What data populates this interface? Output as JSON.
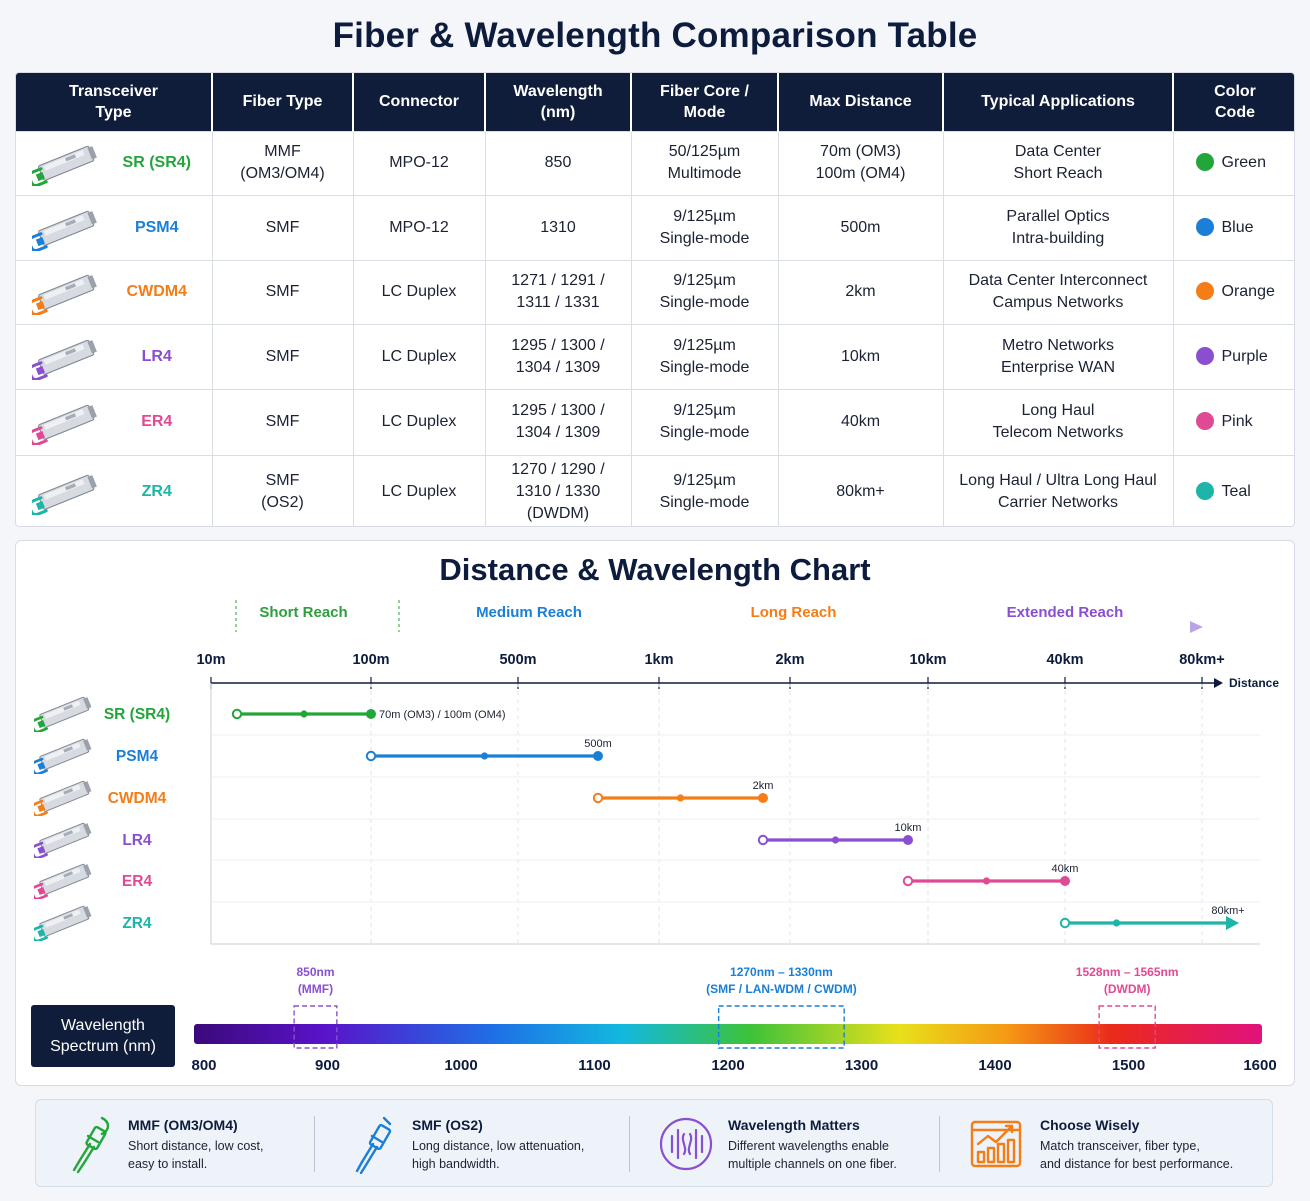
{
  "title": "Fiber & Wavelength Comparison Table",
  "table": {
    "headers": [
      "Transceiver Type",
      "Fiber Type",
      "Connector",
      "Wavelength (nm)",
      "Fiber Core / Mode",
      "Max Distance",
      "Typical Applications",
      "Color Code"
    ],
    "rows": [
      {
        "type": "SR (SR4)",
        "fiber": [
          "MMF",
          "(OM3/OM4)"
        ],
        "connector": "MPO-12",
        "wavelength": [
          "850"
        ],
        "core": [
          "50/125µm",
          "Multimode"
        ],
        "distance": [
          "70m (OM3)",
          "100m (OM4)"
        ],
        "apps": [
          "Data Center",
          "Short Reach"
        ],
        "color_name": "Green",
        "color": "#22a63a"
      },
      {
        "type": "PSM4",
        "fiber": [
          "SMF"
        ],
        "connector": "MPO-12",
        "wavelength": [
          "1310"
        ],
        "core": [
          "9/125µm",
          "Single-mode"
        ],
        "distance": [
          "500m"
        ],
        "apps": [
          "Parallel Optics",
          "Intra-building"
        ],
        "color_name": "Blue",
        "color": "#1a7fd6"
      },
      {
        "type": "CWDM4",
        "fiber": [
          "SMF"
        ],
        "connector": "LC Duplex",
        "wavelength": [
          "1271 / 1291 /",
          "1311 / 1331"
        ],
        "core": [
          "9/125µm",
          "Single-mode"
        ],
        "distance": [
          "2km"
        ],
        "apps": [
          "Data Center Interconnect",
          "Campus Networks"
        ],
        "color_name": "Orange",
        "color": "#f47d17"
      },
      {
        "type": "LR4",
        "fiber": [
          "SMF"
        ],
        "connector": "LC Duplex",
        "wavelength": [
          "1295 / 1300 /",
          "1304 / 1309"
        ],
        "core": [
          "9/125µm",
          "Single-mode"
        ],
        "distance": [
          "10km"
        ],
        "apps": [
          "Metro Networks",
          "Enterprise WAN"
        ],
        "color_name": "Purple",
        "color": "#8a4fd1"
      },
      {
        "type": "ER4",
        "fiber": [
          "SMF"
        ],
        "connector": "LC Duplex",
        "wavelength": [
          "1295 / 1300 /",
          "1304 / 1309"
        ],
        "core": [
          "9/125µm",
          "Single-mode"
        ],
        "distance": [
          "40km"
        ],
        "apps": [
          "Long Haul",
          "Telecom Networks"
        ],
        "color_name": "Pink",
        "color": "#e04a94"
      },
      {
        "type": "ZR4",
        "fiber": [
          "SMF",
          "(OS2)"
        ],
        "connector": "LC Duplex",
        "wavelength": [
          "1270 / 1290 /",
          "1310 / 1330",
          "(DWDM)"
        ],
        "core": [
          "9/125µm",
          "Single-mode"
        ],
        "distance": [
          "80km+"
        ],
        "apps": [
          "Long Haul / Ultra Long Haul",
          "Carrier Networks"
        ],
        "color_name": "Teal",
        "color": "#1db5a8"
      }
    ]
  },
  "chart": {
    "title": "Distance & Wavelength Chart",
    "reach_bands": [
      {
        "label": "Short Reach",
        "color": "#2e9e3e",
        "from": "10m",
        "to": "100m"
      },
      {
        "label": "Medium Reach",
        "color": "#1a7fd6",
        "from": "100m",
        "to": "1km"
      },
      {
        "label": "Long Reach",
        "color": "#f47d17",
        "from": "1km",
        "to": "10km"
      },
      {
        "label": "Extended Reach",
        "color": "#8a4fd1",
        "from": "10km",
        "to": "80km+"
      }
    ],
    "axis_label": "Distance",
    "ticks": [
      "10m",
      "100m",
      "500m",
      "1km",
      "2km",
      "10km",
      "40km",
      "80km+"
    ]
  },
  "chart_data": {
    "type": "line",
    "x_scale": "categorical-log",
    "x_ticks": [
      "10m",
      "100m",
      "500m",
      "1km",
      "2km",
      "10km",
      "40km",
      "80km+"
    ],
    "series": [
      {
        "name": "SR (SR4)",
        "from": "10m",
        "to": "100m",
        "label": "70m (OM3) / 100m (OM4)",
        "color": "#22a63a"
      },
      {
        "name": "PSM4",
        "from": "100m",
        "to": "500m",
        "label": "500m",
        "color": "#1a7fd6"
      },
      {
        "name": "CWDM4",
        "from": "500m",
        "to": "2km",
        "label": "2km",
        "color": "#f47d17"
      },
      {
        "name": "LR4",
        "from": "2km",
        "to": "10km",
        "label": "10km",
        "color": "#8a4fd1"
      },
      {
        "name": "ER4",
        "from": "10km",
        "to": "40km",
        "label": "40km",
        "color": "#e04a94"
      },
      {
        "name": "ZR4",
        "from": "40km",
        "to": "80km+",
        "label": "80km+",
        "color": "#1db5a8"
      }
    ]
  },
  "spectrum": {
    "label": [
      "Wavelength",
      "Spectrum (nm)"
    ],
    "min": 800,
    "max": 1600,
    "ticks": [
      800,
      900,
      1000,
      1100,
      1200,
      1300,
      1400,
      1500,
      1600
    ],
    "highlights": [
      {
        "lines": [
          "850nm",
          "(MMF)"
        ],
        "from": 875,
        "to": 907,
        "color": "#8a4fd1"
      },
      {
        "lines": [
          "1270nm – 1330nm",
          "(SMF / LAN-WDM / CWDM)"
        ],
        "from": 1193,
        "to": 1287,
        "color": "#1a7fd6"
      },
      {
        "lines": [
          "1528nm – 1565nm",
          "(DWDM)"
        ],
        "from": 1478,
        "to": 1520,
        "color": "#e04a94"
      }
    ]
  },
  "footer": [
    {
      "title": "MMF (OM3/OM4)",
      "desc": [
        "Short distance, low cost,",
        "easy to install."
      ],
      "icon": "mmf-cable-icon",
      "color": "#22a63a"
    },
    {
      "title": "SMF (OS2)",
      "desc": [
        "Long distance, low attenuation,",
        "high bandwidth."
      ],
      "icon": "smf-cable-icon",
      "color": "#1a7fd6"
    },
    {
      "title": "Wavelength Matters",
      "desc": [
        "Different wavelengths enable",
        "multiple channels on one fiber."
      ],
      "icon": "wavelength-icon",
      "color": "#8a4fd1"
    },
    {
      "title": "Choose Wisely",
      "desc": [
        "Match transceiver, fiber type,",
        "and distance for best performance."
      ],
      "icon": "chart-growth-icon",
      "color": "#f47d17"
    }
  ]
}
